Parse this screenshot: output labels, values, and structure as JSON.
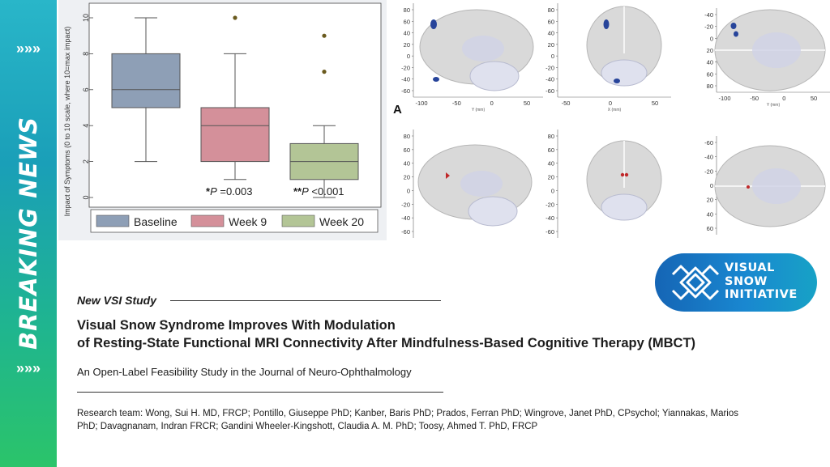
{
  "banner": {
    "text": "BREAKING NEWS",
    "chevrons": "»»»",
    "gradient_top": "#29b6c9",
    "gradient_bottom": "#2bc46a"
  },
  "box_plot": {
    "ylabel": "Impact of Symptoms (0 to 10 scale, where 10=max impact)",
    "ticks": [
      "0",
      "2",
      "4",
      "6",
      "8",
      "10"
    ],
    "groups": [
      {
        "name": "Baseline",
        "min": 2,
        "q1": 5,
        "median": 6,
        "q3": 8,
        "max": 10,
        "outliers": [],
        "color": "#8e9fb6"
      },
      {
        "name": "Week 9",
        "min": 1,
        "q1": 2,
        "median": 4,
        "q3": 5,
        "max": 8,
        "outliers": [
          10
        ],
        "color": "#d4909a"
      },
      {
        "name": "Week 20",
        "min": 0,
        "q1": 1,
        "median": 2,
        "q3": 3,
        "max": 4,
        "outliers": [
          7,
          9
        ],
        "color": "#b3c596"
      }
    ],
    "annotations": [
      {
        "prefix": "*",
        "p": "P",
        "text": " =0.003"
      },
      {
        "prefix": "**",
        "p": "P",
        "text": " <0.001"
      }
    ]
  },
  "brain_figure": {
    "panel_label": "A",
    "row1": {
      "sagittal_y": [
        "80",
        "60",
        "40",
        "20",
        "0",
        "-20",
        "-40",
        "-60"
      ],
      "sagittal_x": [
        "-100",
        "-50",
        "0",
        "50"
      ],
      "sagittal_xlabel": "Y (mm)",
      "coronal_x": [
        "-50",
        "0",
        "50"
      ],
      "coronal_xlabel": "X (mm)",
      "axial_y": [
        "-40",
        "-20",
        "0",
        "20",
        "40",
        "60",
        "80"
      ],
      "axial_x": [
        "-100",
        "-50",
        "0",
        "50"
      ],
      "axial_xlabel": "Y (mm)",
      "cluster_color": "#27449a"
    },
    "row2": {
      "sagittal_y": [
        "80",
        "60",
        "40",
        "20",
        "0",
        "-20",
        "-40",
        "-60"
      ],
      "coronal_y": [
        "80",
        "60",
        "40",
        "20",
        "0",
        "-20",
        "-40",
        "-60"
      ],
      "axial_y": [
        "-60",
        "-40",
        "-20",
        "0",
        "20",
        "40",
        "60"
      ],
      "cluster_color": "#c0282a"
    }
  },
  "logo": {
    "line1": "VISUAL",
    "line2": "SNOW",
    "line3": "INITIATIVE"
  },
  "article": {
    "kicker": "New VSI Study",
    "headline_line1": "Visual Snow Syndrome Improves With Modulation",
    "headline_line2": "of Resting-State Functional MRI Connectivity After Mindfulness-Based Cognitive Therapy (MBCT)",
    "subtitle": "An Open-Label Feasibility Study in the Journal of Neuro-Ophthalmology",
    "team": "Research team: Wong, Sui H. MD, FRCP; Pontillo, Giuseppe PhD; Kanber, Baris PhD; Prados, Ferran PhD; Wingrove, Janet PhD, CPsychol; Yiannakas, Marios PhD; Davagnanam, Indran FRCR; Gandini Wheeler-Kingshott, Claudia A. M. PhD; Toosy, Ahmed T. PhD, FRCP"
  }
}
